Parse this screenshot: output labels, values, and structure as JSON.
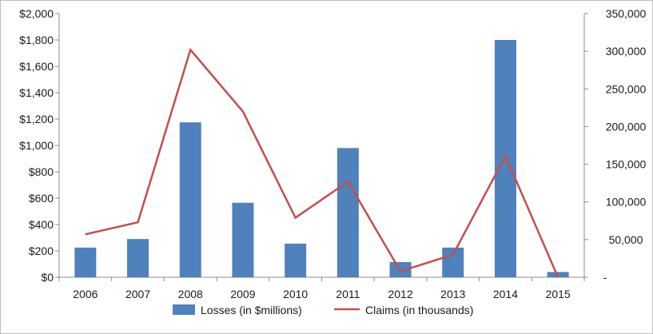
{
  "chart_data": {
    "type": "bar",
    "categories": [
      "2006",
      "2007",
      "2008",
      "2009",
      "2010",
      "2011",
      "2012",
      "2013",
      "2014",
      "2015"
    ],
    "series": [
      {
        "name": "Losses (in $millions)",
        "type": "bar",
        "axis": "left",
        "color": "#4F81BD",
        "values": [
          225,
          290,
          1175,
          565,
          255,
          980,
          115,
          225,
          1800,
          40
        ]
      },
      {
        "name": "Claims (in thousands)",
        "type": "line",
        "axis": "right",
        "color": "#C0504D",
        "values": [
          57000,
          73000,
          302000,
          220000,
          79000,
          127000,
          8000,
          30000,
          161000,
          0
        ]
      }
    ],
    "y_left": {
      "ylim": [
        0,
        2000
      ],
      "ticks": [
        0,
        200,
        400,
        600,
        800,
        1000,
        1200,
        1400,
        1600,
        1800,
        2000
      ],
      "tick_labels": [
        "$0",
        "$200",
        "$400",
        "$600",
        "$800",
        "$1,000",
        "$1,200",
        "$1,400",
        "$1,600",
        "$1,800",
        "$2,000"
      ]
    },
    "y_right": {
      "ylim": [
        0,
        350000
      ],
      "ticks": [
        0,
        50000,
        100000,
        150000,
        200000,
        250000,
        300000,
        350000
      ],
      "tick_labels": [
        "-",
        "50,000",
        "100,000",
        "150,000",
        "200,000",
        "250,000",
        "300,000",
        "350,000"
      ]
    },
    "title": "",
    "xlabel": "",
    "ylabel": "",
    "grid": false,
    "legend": "bottom"
  }
}
